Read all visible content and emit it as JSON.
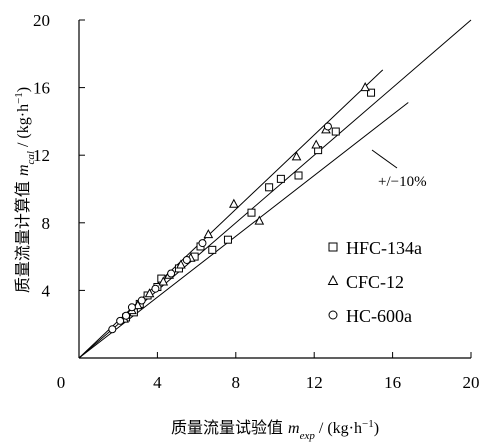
{
  "chart_data": {
    "type": "scatter",
    "xlim": [
      0,
      20
    ],
    "ylim": [
      0,
      20
    ],
    "x_ticks": [
      "0",
      "4",
      "8",
      "12",
      "16",
      "20"
    ],
    "y_ticks": [
      "4",
      "8",
      "12",
      "16",
      "20"
    ],
    "xlabel": {
      "prefix": "质量流量试验值 ",
      "var": "m",
      "sub": "exp",
      "unit_pre": " / (kg·h",
      "sup": "−1",
      "unit_post": ")"
    },
    "ylabel": {
      "prefix": "质量流量计算值 ",
      "var": "m",
      "sub": "cal",
      "unit_pre": " / (kg·h",
      "sup": "−1",
      "unit_post": ")"
    },
    "annotation": "+/−10%",
    "reference_lines": [
      {
        "kind": "identity",
        "slope": 1.0
      },
      {
        "kind": "upper_bound",
        "slope": 1.1
      },
      {
        "kind": "lower_bound",
        "slope": 0.9
      }
    ],
    "legend": {
      "position": "lower-right"
    },
    "series": [
      {
        "name": "HFC-134a",
        "marker": "square",
        "points": [
          [
            2.4,
            2.4
          ],
          [
            2.8,
            2.7
          ],
          [
            3.1,
            3.2
          ],
          [
            3.5,
            3.7
          ],
          [
            4.0,
            4.2
          ],
          [
            4.2,
            4.7
          ],
          [
            5.1,
            5.3
          ],
          [
            5.9,
            6.0
          ],
          [
            6.2,
            6.6
          ],
          [
            6.8,
            6.4
          ],
          [
            7.6,
            7.0
          ],
          [
            8.8,
            8.6
          ],
          [
            9.7,
            10.1
          ],
          [
            10.3,
            10.6
          ],
          [
            11.2,
            10.8
          ],
          [
            12.2,
            12.3
          ],
          [
            13.1,
            13.4
          ],
          [
            14.9,
            15.7
          ]
        ]
      },
      {
        "name": "CFC-12",
        "marker": "triangle",
        "points": [
          [
            2.3,
            2.3
          ],
          [
            2.7,
            2.8
          ],
          [
            3.0,
            3.1
          ],
          [
            3.6,
            3.8
          ],
          [
            4.3,
            4.5
          ],
          [
            4.6,
            4.9
          ],
          [
            5.2,
            5.5
          ],
          [
            5.7,
            5.9
          ],
          [
            6.6,
            7.3
          ],
          [
            7.9,
            9.1
          ],
          [
            9.2,
            8.1
          ],
          [
            11.1,
            11.9
          ],
          [
            12.1,
            12.6
          ],
          [
            12.6,
            13.5
          ],
          [
            14.6,
            16.0
          ]
        ]
      },
      {
        "name": "HC-600a",
        "marker": "circle",
        "points": [
          [
            1.7,
            1.7
          ],
          [
            2.1,
            2.2
          ],
          [
            2.4,
            2.5
          ],
          [
            2.7,
            3.0
          ],
          [
            3.2,
            3.4
          ],
          [
            3.9,
            4.1
          ],
          [
            4.7,
            5.0
          ],
          [
            5.5,
            5.8
          ],
          [
            6.3,
            6.8
          ],
          [
            12.7,
            13.7
          ]
        ]
      }
    ]
  }
}
